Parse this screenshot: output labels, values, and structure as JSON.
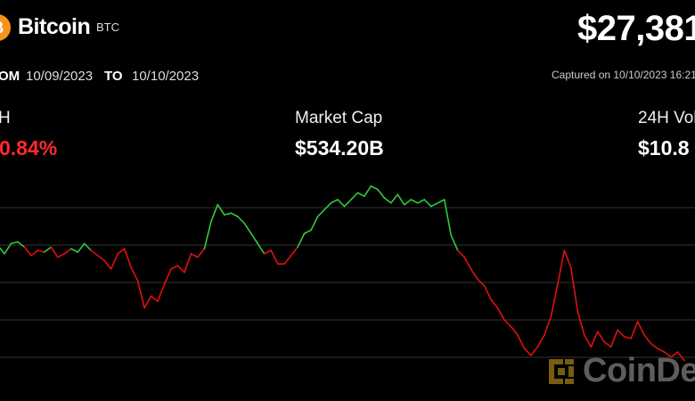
{
  "header": {
    "asset_name": "Bitcoin",
    "asset_symbol": "BTC",
    "logo_glyph": "₿",
    "price": "$27,381",
    "from_label": "OM",
    "from_date": "10/09/2023",
    "to_label": "TO",
    "to_date": "10/10/2023",
    "captured": "Captured on 10/10/2023 16:21"
  },
  "stats": {
    "change_label": "H",
    "change_value": "0.84%",
    "market_cap_label": "Market Cap",
    "market_cap_value": "$534.20B",
    "volume_label": "24H Vol",
    "volume_value": "$10.8"
  },
  "watermark": {
    "text": "CoinDe"
  },
  "colors": {
    "up": "#2ecc40",
    "down": "#e01010",
    "grid": "#333333",
    "logo": "#f7931a",
    "background": "#000000"
  },
  "chart_data": {
    "type": "line",
    "title": "",
    "xlabel": "",
    "ylabel": "",
    "ylim": [
      0,
      100
    ],
    "grid": true,
    "legend": "none",
    "series": [
      {
        "values": [
          60,
          63,
          58,
          64,
          65,
          62,
          57,
          60,
          59,
          62,
          56,
          58,
          61,
          59,
          64,
          60,
          57,
          54,
          49,
          58,
          61,
          50,
          42,
          26,
          33,
          30,
          40,
          49,
          51,
          47,
          58,
          56,
          61,
          77,
          87,
          81,
          82,
          80,
          76,
          70,
          64,
          58,
          60,
          52,
          52,
          57,
          62,
          70,
          72,
          80,
          84,
          88,
          90,
          86,
          90,
          94,
          92,
          98,
          96,
          91,
          88,
          93,
          87,
          90,
          88,
          90,
          86,
          88,
          90,
          69,
          60,
          56,
          49,
          43,
          39,
          31,
          26,
          19,
          15,
          10,
          2,
          -2,
          3,
          10,
          21,
          40,
          60,
          50,
          24,
          10,
          3,
          12,
          6,
          3,
          13,
          9,
          8,
          18,
          10,
          5,
          2,
          0,
          -3,
          0,
          -5
        ]
      }
    ]
  }
}
